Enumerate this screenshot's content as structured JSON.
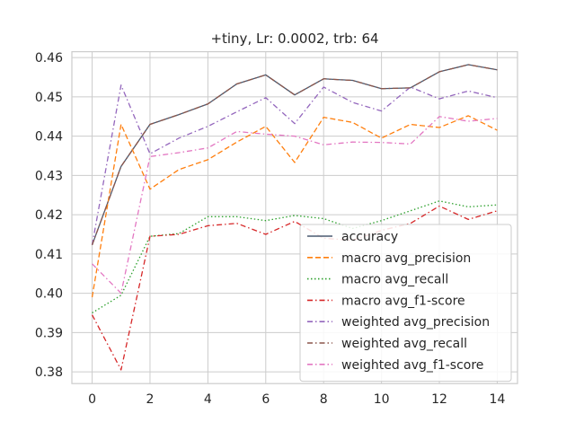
{
  "chart_data": {
    "type": "line",
    "title": "+tiny, Lr: 0.0002, trb: 64",
    "xlabel": "",
    "ylabel": "",
    "xlim": [
      -0.7,
      14.7
    ],
    "ylim": [
      0.377,
      0.4615
    ],
    "xticks": [
      0,
      2,
      4,
      6,
      8,
      10,
      12,
      14
    ],
    "yticks": [
      0.38,
      0.39,
      0.4,
      0.41,
      0.42,
      0.43,
      0.44,
      0.45,
      0.46
    ],
    "ytick_labels": [
      "0.38",
      "0.39",
      "0.40",
      "0.41",
      "0.42",
      "0.43",
      "0.44",
      "0.45",
      "0.46"
    ],
    "grid": true,
    "legend_position": "lower-right",
    "x": [
      0,
      1,
      2,
      3,
      4,
      5,
      6,
      7,
      8,
      9,
      10,
      11,
      12,
      13,
      14
    ],
    "series": [
      {
        "name": "accuracy",
        "color": "#4a5a70",
        "dash": "solid",
        "values": [
          0.4123,
          0.4323,
          0.443,
          0.4455,
          0.4482,
          0.4533,
          0.4556,
          0.4505,
          0.4546,
          0.4542,
          0.4521,
          0.4523,
          0.4564,
          0.4582,
          0.4569
        ]
      },
      {
        "name": "macro avg_precision",
        "color": "#ff7f0e",
        "dash": "dashed",
        "values": [
          0.399,
          0.443,
          0.4265,
          0.4315,
          0.434,
          0.4385,
          0.4425,
          0.4333,
          0.4448,
          0.4435,
          0.4395,
          0.443,
          0.4422,
          0.4452,
          0.4415
        ]
      },
      {
        "name": "macro avg_recall",
        "color": "#2ca02c",
        "dash": "dotted",
        "values": [
          0.395,
          0.3995,
          0.4145,
          0.4152,
          0.4195,
          0.4195,
          0.4185,
          0.4198,
          0.419,
          0.4165,
          0.4185,
          0.421,
          0.4235,
          0.422,
          0.4225
        ]
      },
      {
        "name": "macro avg_f1-score",
        "color": "#d62728",
        "dash": "dashdot",
        "values": [
          0.3945,
          0.3805,
          0.4145,
          0.415,
          0.4172,
          0.4178,
          0.415,
          0.4183,
          0.414,
          0.4135,
          0.416,
          0.4178,
          0.4222,
          0.4188,
          0.421
        ]
      },
      {
        "name": "weighted avg_precision",
        "color": "#9467bd",
        "dash": "dashdot",
        "values": [
          0.4123,
          0.453,
          0.4355,
          0.4395,
          0.4425,
          0.4462,
          0.4498,
          0.4432,
          0.4525,
          0.4486,
          0.4464,
          0.4525,
          0.4495,
          0.4515,
          0.4498
        ]
      },
      {
        "name": "weighted avg_recall",
        "color": "#8c564b",
        "dash": "dashdot",
        "values": [
          0.4123,
          0.4323,
          0.443,
          0.4455,
          0.4482,
          0.4533,
          0.4556,
          0.4505,
          0.4546,
          0.4542,
          0.4521,
          0.4523,
          0.4564,
          0.4582,
          0.4569
        ]
      },
      {
        "name": "weighted avg_f1-score",
        "color": "#e377c2",
        "dash": "dashdot",
        "values": [
          0.4075,
          0.4,
          0.4348,
          0.4358,
          0.437,
          0.4412,
          0.4405,
          0.44,
          0.4378,
          0.4385,
          0.4384,
          0.438,
          0.445,
          0.4438,
          0.4445
        ]
      }
    ]
  }
}
